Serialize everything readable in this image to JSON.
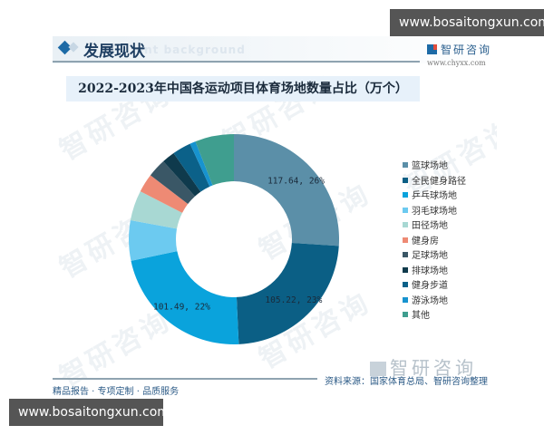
{
  "section": {
    "title": "发展现状",
    "subtitle": "ent background"
  },
  "brand": {
    "name": "智研咨询",
    "url": "www.chyxx.com"
  },
  "watermark_text": "智研咨询",
  "overlay": {
    "top": "www.bosaitongxun.com",
    "bottom": "www.bosaitongxun.com"
  },
  "footer": {
    "left": "精品报告 · 专项定制 · 品质服务",
    "source": "资料来源：国家体育总局、智研咨询整理",
    "logo": "智研咨询"
  },
  "chart_data": {
    "type": "pie",
    "donut": true,
    "title": "2022-2023年中国各运动项目体育场地数量占比（万个）",
    "legend_position": "right",
    "categories": [
      "篮球场地",
      "全民健身路径",
      "乒乓球场地",
      "羽毛球场地",
      "田径场地",
      "健身房",
      "足球场地",
      "排球场地",
      "健身步道",
      "游泳场地",
      "其他"
    ],
    "values": [
      117.64,
      105.22,
      101.49,
      28.0,
      21.0,
      13.0,
      13.0,
      9.0,
      13.0,
      4.0,
      27.0
    ],
    "percentages": [
      26,
      23,
      22,
      6,
      5,
      3,
      3,
      2,
      3,
      1,
      6
    ],
    "colors": [
      "#5b8fa8",
      "#0b5f85",
      "#0aa3dc",
      "#6ccaf0",
      "#a8d8d3",
      "#ee8a74",
      "#3a5766",
      "#0f3a4c",
      "#0b6189",
      "#1793cf",
      "#3f9e8f"
    ],
    "data_labels": [
      "117.64, 26%",
      "105.22, 23%",
      "101.49, 22%",
      "",
      "",
      "",
      "",
      "",
      "",
      "",
      ""
    ]
  }
}
